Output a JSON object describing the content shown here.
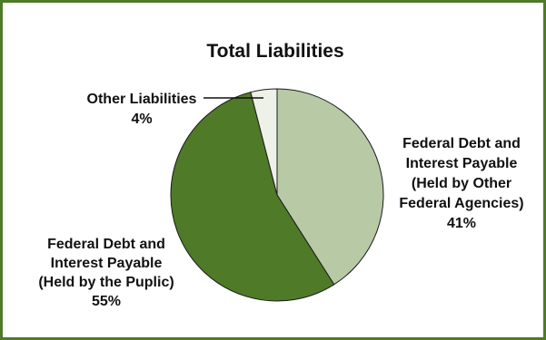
{
  "chart_data": {
    "type": "pie",
    "title": "Total Liabilities",
    "slices": [
      {
        "name_lines": [
          "Federal Debt and",
          "Interest Payable",
          "(Held by Other",
          "Federal Agencies)"
        ],
        "percent_label": "41%",
        "value": 41,
        "color": "#b8c9a6"
      },
      {
        "name_lines": [
          "Federal Debt and",
          "Interest Payable",
          "(Held by the Puplic)"
        ],
        "percent_label": "55%",
        "value": 55,
        "color": "#4f7a28"
      },
      {
        "name_lines": [
          "Other Liabilities"
        ],
        "percent_label": "4%",
        "value": 4,
        "color": "#eef1e8"
      }
    ],
    "frame_color": "#4f7a28"
  }
}
